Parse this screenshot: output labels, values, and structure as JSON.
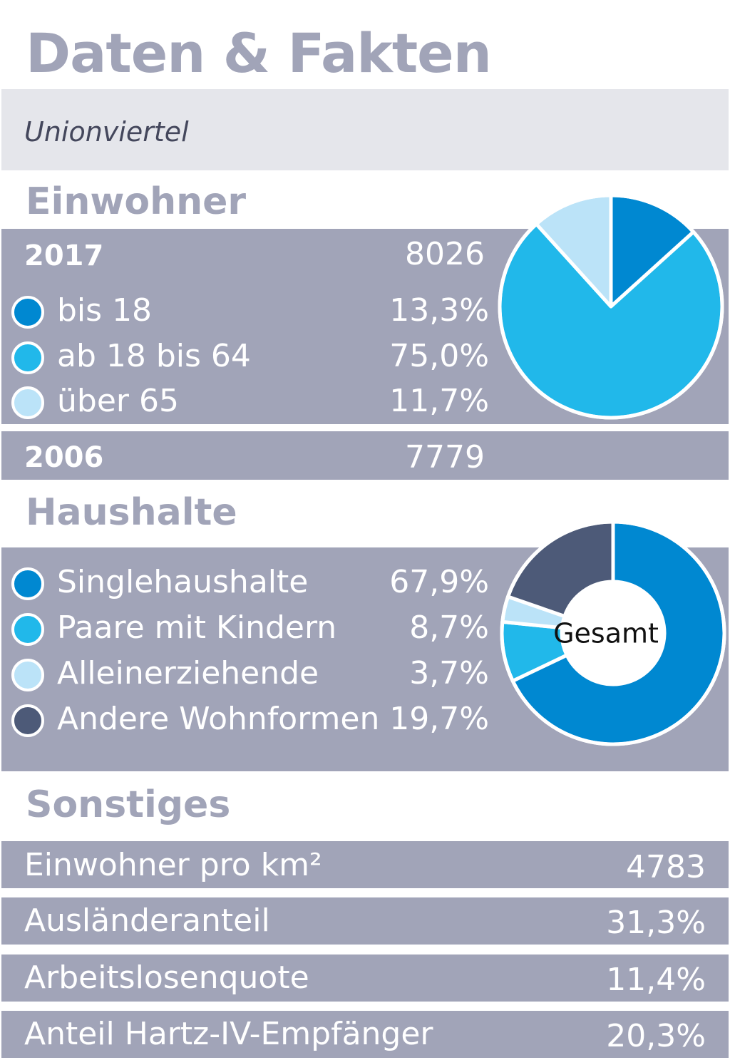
{
  "header": {
    "title": "Daten & Fakten",
    "subtitle": "Unionviertel"
  },
  "einwohner": {
    "heading": "Einwohner",
    "years": [
      {
        "year": "2017",
        "value": "8026"
      },
      {
        "year": "2006",
        "value": "7779"
      }
    ],
    "legend": [
      {
        "label": "bis 18",
        "value": "13,3%",
        "color": "#0088d1"
      },
      {
        "label": "ab 18 bis 64",
        "value": "75,0%",
        "color": "#21b8ea"
      },
      {
        "label": "über 65",
        "value": "11,7%",
        "color": "#bbe3f8"
      }
    ]
  },
  "haushalte": {
    "heading": "Haushalte",
    "center_label": "Gesamt",
    "legend": [
      {
        "label": "Singlehaushalte",
        "value": "67,9%",
        "color": "#0088d1"
      },
      {
        "label": "Paare mit Kindern",
        "value": "8,7%",
        "color": "#21b8ea"
      },
      {
        "label": "Alleinerziehende",
        "value": "3,7%",
        "color": "#bbe3f8"
      },
      {
        "label": "Andere Wohnformen",
        "value": "19,7%",
        "color": "#4d5a78"
      }
    ]
  },
  "sonstiges": {
    "heading": "Sonstiges",
    "rows": [
      {
        "label": "Einwohner pro km²",
        "value": "4783"
      },
      {
        "label": "Ausländeranteil",
        "value": "31,3%"
      },
      {
        "label": "Arbeitslosenquote",
        "value": "11,4%"
      },
      {
        "label": "Anteil Hartz-IV-Empfänger",
        "value": "20,3%"
      }
    ]
  },
  "chart_data": [
    {
      "type": "pie",
      "categories": [
        "bis 18",
        "ab 18 bis 64",
        "über 65"
      ],
      "values": [
        13.3,
        75.0,
        11.7
      ],
      "colors": [
        "#0088d1",
        "#21b8ea",
        "#bbe3f8"
      ]
    },
    {
      "type": "pie",
      "categories": [
        "Singlehaushalte",
        "Paare mit Kindern",
        "Alleinerziehende",
        "Andere Wohnformen"
      ],
      "values": [
        67.9,
        8.7,
        3.7,
        19.7
      ],
      "colors": [
        "#0088d1",
        "#21b8ea",
        "#bbe3f8",
        "#4d5a78"
      ],
      "center_label": "Gesamt"
    }
  ]
}
